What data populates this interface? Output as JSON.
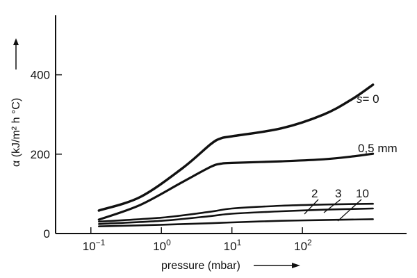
{
  "chart_data": {
    "type": "line",
    "xlabel": "pressure (mbar)",
    "ylabel": "α (kJ/m² h °C)",
    "x_scale": "log",
    "xlim": [
      0.0316,
      3000
    ],
    "ylim": [
      0,
      550
    ],
    "x_ticks": [
      {
        "value": 0.1,
        "base": "10",
        "exp": "−1"
      },
      {
        "value": 1,
        "base": "10",
        "exp": "0"
      },
      {
        "value": 10,
        "base": "10",
        "exp": "1"
      },
      {
        "value": 100,
        "base": "10",
        "exp": "2"
      }
    ],
    "y_ticks": [
      {
        "value": 0,
        "label": "0"
      },
      {
        "value": 200,
        "label": "200"
      },
      {
        "value": 400,
        "label": "400"
      }
    ],
    "grid": false,
    "legend": "none",
    "series": [
      {
        "name": "s = 0",
        "label_parts": [
          "s",
          "= 0"
        ],
        "x": [
          0.13,
          0.5,
          2,
          5,
          7,
          10,
          50,
          200,
          500,
          1000
        ],
        "y": [
          58,
          92,
          165,
          225,
          240,
          245,
          265,
          300,
          338,
          375
        ]
      },
      {
        "name": "0,5 mm",
        "label_parts": [
          "",
          "0,5 mm"
        ],
        "x": [
          0.13,
          0.5,
          2,
          5,
          7,
          10,
          50,
          200,
          500,
          1000
        ],
        "y": [
          35,
          72,
          130,
          168,
          176,
          178,
          182,
          187,
          194,
          201
        ]
      },
      {
        "name": "2",
        "label_parts": [
          "",
          "2"
        ],
        "x": [
          0.13,
          1,
          5,
          10,
          50,
          200,
          1000
        ],
        "y": [
          30,
          40,
          55,
          63,
          70,
          73,
          75
        ]
      },
      {
        "name": "3",
        "label_parts": [
          "",
          "3"
        ],
        "x": [
          0.13,
          1,
          5,
          10,
          50,
          200,
          1000
        ],
        "y": [
          24,
          32,
          44,
          50,
          56,
          60,
          63
        ]
      },
      {
        "name": "10",
        "label_parts": [
          "",
          "10"
        ],
        "x": [
          0.13,
          1,
          5,
          10,
          50,
          200,
          1000
        ],
        "y": [
          18,
          22,
          26,
          28,
          32,
          34,
          36
        ]
      }
    ]
  }
}
